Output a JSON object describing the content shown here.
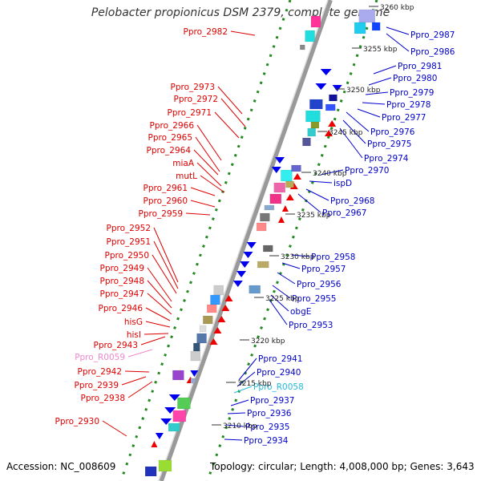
{
  "title": "Pelobacter propionicus DSM 2379, complete genome",
  "footer": {
    "accession": "Accession: NC_008609",
    "topology": "Topology: circular; Length: 4,008,000 bp; Genes: 3,643"
  },
  "colors": {
    "left_label": "#dd0000",
    "right_label": "#0000cc",
    "rna_left": "#ee88cc",
    "rna_right": "#22bbdd",
    "backbone": "#999999",
    "dotted_track": "#228822"
  },
  "kbp_marks": [
    "3260 kbp",
    "3255 kbp",
    "3250 kbp",
    "3245 kbp",
    "3240 kbp",
    "3235 kbp",
    "3230 kbp",
    "3225 kbp",
    "3220 kbp",
    "3215 kbp",
    "3210 kbp"
  ],
  "left_labels": [
    "Ppro_2982",
    "Ppro_2973",
    "Ppro_2972",
    "Ppro_2971",
    "Ppro_2966",
    "Ppro_2965",
    "Ppro_2964",
    "miaA",
    "mutL",
    "Ppro_2961",
    "Ppro_2960",
    "Ppro_2959",
    "Ppro_2952",
    "Ppro_2951",
    "Ppro_2950",
    "Ppro_2949",
    "Ppro_2948",
    "Ppro_2947",
    "Ppro_2946",
    "hisG",
    "hisI",
    "Ppro_2943",
    "Ppro_R0059",
    "Ppro_2942",
    "Ppro_2939",
    "Ppro_2938",
    "Ppro_2930"
  ],
  "right_labels": [
    "Ppro_2987",
    "Ppro_2986",
    "Ppro_2981",
    "Ppro_2980",
    "Ppro_2979",
    "Ppro_2978",
    "Ppro_2977",
    "Ppro_2976",
    "Ppro_2975",
    "Ppro_2974",
    "Ppro_2970",
    "ispD",
    "Ppro_2968",
    "Ppro_2967",
    "Ppro_2958",
    "Ppro_2957",
    "Ppro_2956",
    "Ppro_2955",
    "obgE",
    "Ppro_2953",
    "Ppro_2941",
    "Ppro_2940",
    "Ppro_R0058",
    "Ppro_2937",
    "Ppro_2936",
    "Ppro_2935",
    "Ppro_2934"
  ]
}
